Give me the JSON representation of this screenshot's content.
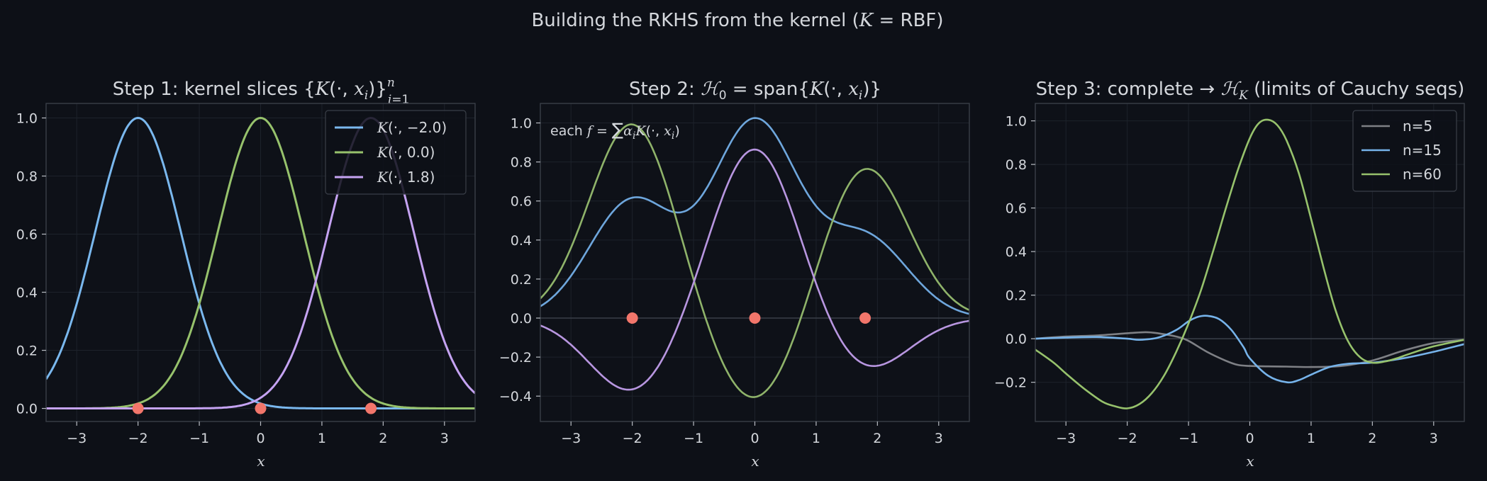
{
  "figure": {
    "title": "Building the RKHS from the kernel  (K = RBF)"
  },
  "chart_data": [
    {
      "type": "line",
      "title": "Step 1: kernel slices {K(·, xᵢ)}ⁿᵢ₌₁",
      "xlabel": "x",
      "ylabel": "",
      "xlim": [
        -3.5,
        3.5
      ],
      "ylim": [
        -0.045,
        1.05
      ],
      "xticks": [
        -3,
        -2,
        -1,
        0,
        1,
        2,
        3
      ],
      "yticks": [
        0.0,
        0.2,
        0.4,
        0.6,
        0.8,
        1.0
      ],
      "grid": true,
      "legend": "top-right",
      "kernel_width": 0.7,
      "centers": [
        -2.0,
        0.0,
        1.8
      ],
      "points": {
        "x": [
          -2.0,
          0.0,
          1.8
        ],
        "y": [
          0,
          0,
          0
        ],
        "color": "#f2766b"
      },
      "series": [
        {
          "name": "K(·, −2.0)",
          "center": -2.0,
          "color": "#7ab8ee"
        },
        {
          "name": "K(·, 0.0)",
          "center": 0.0,
          "color": "#97c26c"
        },
        {
          "name": "K(·, 1.8)",
          "center": 1.8,
          "color": "#c5a3f2"
        }
      ]
    },
    {
      "type": "line",
      "title": "Step 2: ℋ₀ = span{K(·, xᵢ)}",
      "annotation": "each f = Σᵢ αᵢK(·, xᵢ)",
      "xlabel": "x",
      "ylabel": "",
      "xlim": [
        -3.5,
        3.5
      ],
      "ylim": [
        -0.53,
        1.1
      ],
      "xticks": [
        -3,
        -2,
        -1,
        0,
        1,
        2,
        3
      ],
      "yticks": [
        -0.4,
        -0.2,
        0.0,
        0.2,
        0.4,
        0.6,
        0.8,
        1.0
      ],
      "grid": true,
      "zero_line": true,
      "kernel_width": 0.7,
      "centers": [
        -2.0,
        0.0,
        1.8
      ],
      "points": {
        "x": [
          -2.0,
          0.0,
          1.8
        ],
        "y": [
          0,
          0,
          0
        ],
        "color": "#f2766b"
      },
      "series": [
        {
          "coefficients": [
            0.6,
            1.0,
            0.41
          ],
          "color": "#6ea6dc"
        },
        {
          "coefficients": [
            1.0,
            -0.45,
            0.78
          ],
          "color": "#8fb36a"
        },
        {
          "coefficients": [
            -0.38,
            0.88,
            -0.27
          ],
          "color": "#b896e0"
        }
      ]
    },
    {
      "type": "line",
      "title": "Step 3: complete → ℋ_K (limits of Cauchy seqs)",
      "xlabel": "x",
      "ylabel": "",
      "xlim": [
        -3.5,
        3.5
      ],
      "ylim": [
        -0.38,
        1.08
      ],
      "xticks": [
        -3,
        -2,
        -1,
        0,
        1,
        2,
        3
      ],
      "yticks": [
        -0.2,
        0.0,
        0.2,
        0.4,
        0.6,
        0.8,
        1.0
      ],
      "grid": true,
      "zero_line": true,
      "legend": "top-right",
      "series": [
        {
          "name": "n=5",
          "color": "#7e8085",
          "x": [
            -3.5,
            -3,
            -2.5,
            -2,
            -1.7,
            -1.5,
            -1.2,
            -1,
            -0.7,
            -0.4,
            -0.2,
            0,
            0.3,
            0.6,
            1,
            1.5,
            2,
            2.5,
            3,
            3.5
          ],
          "y": [
            0.0,
            0.01,
            0.015,
            0.025,
            0.03,
            0.025,
            0.01,
            -0.01,
            -0.06,
            -0.1,
            -0.12,
            -0.125,
            -0.127,
            -0.128,
            -0.13,
            -0.125,
            -0.1,
            -0.055,
            -0.02,
            -0.005
          ]
        },
        {
          "name": "n=15",
          "color": "#76b3ea",
          "x": [
            -3.5,
            -3,
            -2.5,
            -2,
            -1.8,
            -1.5,
            -1.2,
            -1,
            -0.85,
            -0.7,
            -0.5,
            -0.3,
            -0.1,
            0,
            0.3,
            0.6,
            0.8,
            1,
            1.3,
            1.6,
            2,
            2.5,
            3,
            3.5
          ],
          "y": [
            0.0,
            0.005,
            0.008,
            0.0,
            -0.005,
            0.005,
            0.04,
            0.08,
            0.1,
            0.105,
            0.09,
            0.04,
            -0.04,
            -0.09,
            -0.17,
            -0.2,
            -0.19,
            -0.165,
            -0.13,
            -0.115,
            -0.11,
            -0.09,
            -0.06,
            -0.025
          ]
        },
        {
          "name": "n=60",
          "color": "#97c26c",
          "x": [
            -3.5,
            -3.2,
            -3,
            -2.7,
            -2.4,
            -2.2,
            -2,
            -1.8,
            -1.6,
            -1.4,
            -1.2,
            -1,
            -0.8,
            -0.6,
            -0.4,
            -0.2,
            0,
            0.15,
            0.3,
            0.45,
            0.6,
            0.8,
            1,
            1.2,
            1.4,
            1.6,
            1.8,
            2,
            2.2,
            2.4,
            2.6,
            3,
            3.5
          ],
          "y": [
            -0.05,
            -0.11,
            -0.16,
            -0.23,
            -0.29,
            -0.31,
            -0.32,
            -0.3,
            -0.25,
            -0.17,
            -0.06,
            0.07,
            0.22,
            0.4,
            0.59,
            0.77,
            0.92,
            0.99,
            1.005,
            0.98,
            0.91,
            0.76,
            0.55,
            0.33,
            0.13,
            -0.01,
            -0.085,
            -0.11,
            -0.105,
            -0.09,
            -0.07,
            -0.035,
            -0.005
          ]
        }
      ]
    }
  ]
}
